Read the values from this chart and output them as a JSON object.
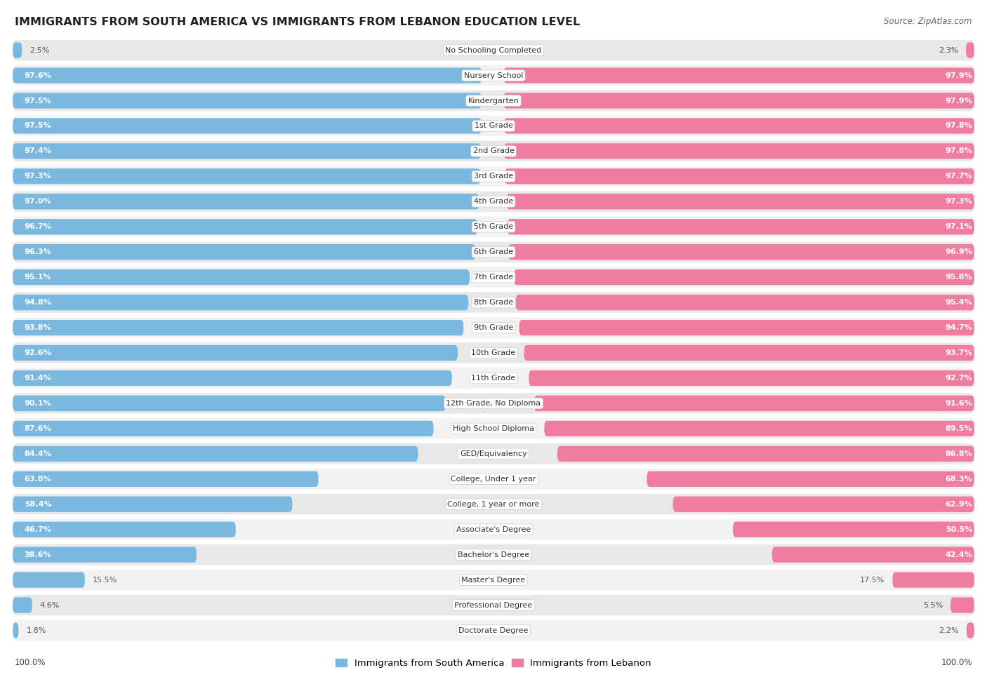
{
  "title": "IMMIGRANTS FROM SOUTH AMERICA VS IMMIGRANTS FROM LEBANON EDUCATION LEVEL",
  "source": "Source: ZipAtlas.com",
  "categories": [
    "No Schooling Completed",
    "Nursery School",
    "Kindergarten",
    "1st Grade",
    "2nd Grade",
    "3rd Grade",
    "4th Grade",
    "5th Grade",
    "6th Grade",
    "7th Grade",
    "8th Grade",
    "9th Grade",
    "10th Grade",
    "11th Grade",
    "12th Grade, No Diploma",
    "High School Diploma",
    "GED/Equivalency",
    "College, Under 1 year",
    "College, 1 year or more",
    "Associate's Degree",
    "Bachelor's Degree",
    "Master's Degree",
    "Professional Degree",
    "Doctorate Degree"
  ],
  "south_america": [
    2.5,
    97.6,
    97.5,
    97.5,
    97.4,
    97.3,
    97.0,
    96.7,
    96.3,
    95.1,
    94.8,
    93.8,
    92.6,
    91.4,
    90.1,
    87.6,
    84.4,
    63.8,
    58.4,
    46.7,
    38.6,
    15.5,
    4.6,
    1.8
  ],
  "lebanon": [
    2.3,
    97.9,
    97.9,
    97.8,
    97.8,
    97.7,
    97.3,
    97.1,
    96.9,
    95.8,
    95.4,
    94.7,
    93.7,
    92.7,
    91.6,
    89.5,
    86.8,
    68.3,
    62.9,
    50.5,
    42.4,
    17.5,
    5.5,
    2.2
  ],
  "color_sa": "#7bb8e0",
  "color_lb": "#f07ca0",
  "color_sa_light": "#b8d8ee",
  "color_lb_light": "#f7b8cb",
  "bg_row_even": "#f7f7f7",
  "bg_row_odd": "#ebebeb",
  "legend_sa": "Immigrants from South America",
  "legend_lb": "Immigrants from Lebanon",
  "label_inside_threshold": 20.0
}
